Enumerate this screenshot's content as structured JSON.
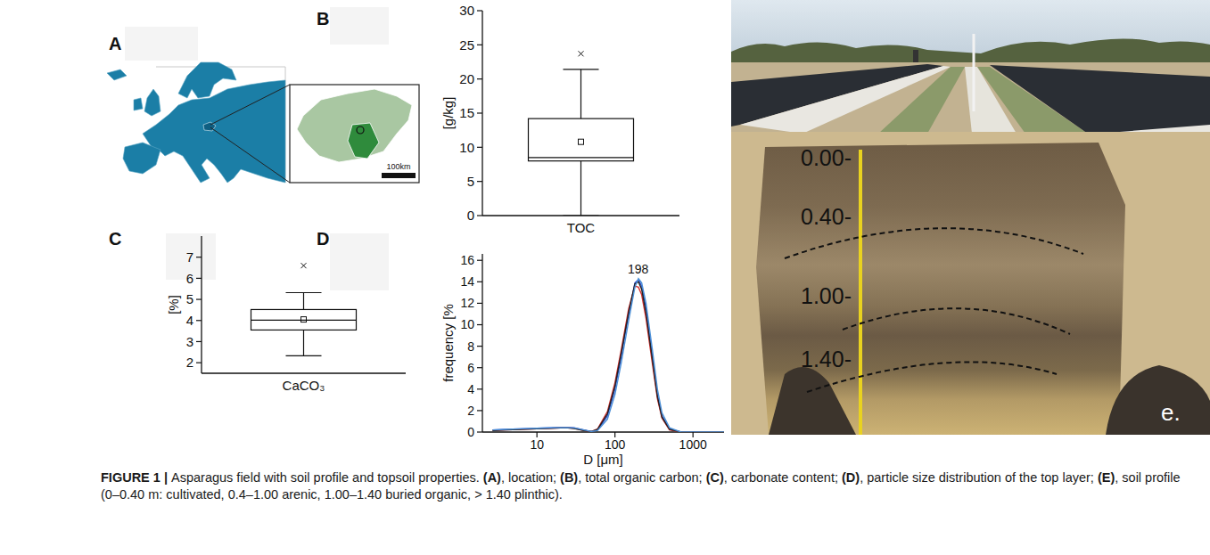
{
  "figure": {
    "map": {
      "panel": "A",
      "scale_label": "100km"
    },
    "photo": {
      "panel_label": "e.",
      "depth_labels": [
        "0.00-",
        "0.40-",
        "1.00-",
        "1.40-"
      ]
    },
    "caption": [
      {
        "text": "FIGURE 1 | ",
        "bold": true
      },
      {
        "text": "Asparagus field with soil profile and topsoil properties. "
      },
      {
        "text": "(A)",
        "bold": true
      },
      {
        "text": ", location; "
      },
      {
        "text": "(B)",
        "bold": true
      },
      {
        "text": ", total organic carbon; "
      },
      {
        "text": "(C)",
        "bold": true
      },
      {
        "text": ", carbonate content; "
      },
      {
        "text": "(D)",
        "bold": true
      },
      {
        "text": ", particle size distribution of the top layer; "
      },
      {
        "text": "(E)",
        "bold": true
      },
      {
        "text": ", soil profile (0–0.40 m: cultivated, 0.4–1.00 arenic, 1.00–1.40 buried organic, > 1.40 plinthic)."
      }
    ]
  },
  "chart_data": [
    {
      "type": "box",
      "panel": "B",
      "y_label": "[g/kg]",
      "categories": [
        "TOC"
      ],
      "ylim": [
        0,
        30
      ],
      "yticks": [
        0,
        5,
        10,
        15,
        20,
        25,
        30
      ],
      "boxes": [
        {
          "whislo": 0,
          "q1": 8,
          "med": 8.5,
          "q3": 14.2,
          "whishi": 21.4,
          "mean": 10.8,
          "fliers": [
            23.7
          ]
        }
      ]
    },
    {
      "type": "box",
      "panel": "C",
      "y_label": "[%]",
      "categories": [
        "CaCO₃"
      ],
      "ylim": [
        1.5,
        8
      ],
      "yticks": [
        2,
        3,
        4,
        5,
        6,
        7
      ],
      "boxes": [
        {
          "whislo": 2.33,
          "q1": 3.55,
          "med": 4.02,
          "q3": 4.52,
          "whishi": 5.32,
          "mean": 4.05,
          "fliers": [
            6.6
          ]
        }
      ]
    },
    {
      "type": "line",
      "panel": "D",
      "x_label": "D [μm]",
      "y_label": "frequency [%",
      "log": "x",
      "xlim": [
        2,
        2500
      ],
      "xticks": [
        10,
        100,
        1000
      ],
      "ylim": [
        0,
        16.6
      ],
      "yticks": [
        0,
        2,
        4,
        6,
        8,
        10,
        12,
        14,
        16
      ],
      "x": [
        2.7,
        4,
        6,
        10,
        15,
        20,
        25,
        30,
        40,
        50,
        60,
        80,
        100,
        120,
        150,
        180,
        200,
        220,
        250,
        300,
        350,
        400,
        500,
        700,
        1000,
        2000,
        2500
      ],
      "series": [
        {
          "color": "#2f4fd6",
          "values": [
            0.2,
            0.25,
            0.3,
            0.35,
            0.4,
            0.45,
            0.45,
            0.4,
            0.2,
            0.05,
            0.2,
            1.5,
            4.0,
            7.0,
            11.0,
            13.9,
            14.2,
            13.6,
            11.5,
            7.2,
            3.5,
            1.5,
            0.3,
            0,
            0,
            0,
            0
          ]
        },
        {
          "color": "#d63030",
          "values": [
            0.15,
            0.2,
            0.25,
            0.3,
            0.35,
            0.4,
            0.4,
            0.35,
            0.15,
            0.05,
            0.3,
            1.9,
            4.6,
            7.6,
            11.5,
            13.6,
            13.5,
            12.8,
            10.6,
            6.5,
            3.1,
            1.3,
            0.2,
            0,
            0,
            0,
            0
          ]
        },
        {
          "color": "#222222",
          "values": [
            0.15,
            0.2,
            0.25,
            0.3,
            0.35,
            0.38,
            0.38,
            0.33,
            0.15,
            0.04,
            0.25,
            1.7,
            4.3,
            7.3,
            11.2,
            13.8,
            14.0,
            13.3,
            11.1,
            6.9,
            3.3,
            1.4,
            0.25,
            0,
            0,
            0,
            0
          ]
        },
        {
          "color": "#4a8fd6",
          "values": [
            0.2,
            0.25,
            0.3,
            0.35,
            0.4,
            0.42,
            0.42,
            0.38,
            0.2,
            0.05,
            0.15,
            1.2,
            3.5,
            6.4,
            10.4,
            13.5,
            14.3,
            13.9,
            12.0,
            7.8,
            4.0,
            1.8,
            0.4,
            0,
            0,
            0,
            0
          ]
        }
      ],
      "annotations": [
        {
          "text": "198",
          "x": 198,
          "y": 14.3
        }
      ]
    }
  ]
}
